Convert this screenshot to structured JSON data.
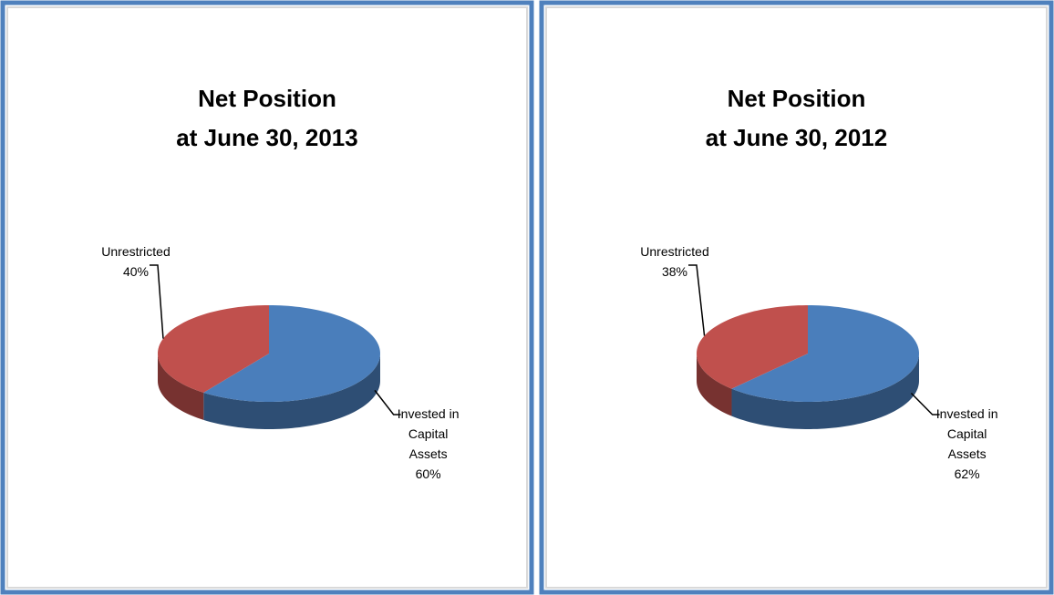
{
  "chart_data": [
    {
      "type": "pie",
      "title": [
        "Net Position",
        "at June 30, 2013"
      ],
      "categories": [
        "Invested in Capital Assets",
        "Unrestricted"
      ],
      "values": [
        60,
        40
      ],
      "value_labels": [
        "60%",
        "40%"
      ],
      "colors": [
        "#4a7ebb",
        "#c0504d"
      ]
    },
    {
      "type": "pie",
      "title": [
        "Net Position",
        "at June 30, 2012"
      ],
      "categories": [
        "Invested in Capital Assets",
        "Unrestricted"
      ],
      "values": [
        62,
        38
      ],
      "value_labels": [
        "62%",
        "38%"
      ],
      "colors": [
        "#4a7ebb",
        "#c0504d"
      ]
    }
  ]
}
